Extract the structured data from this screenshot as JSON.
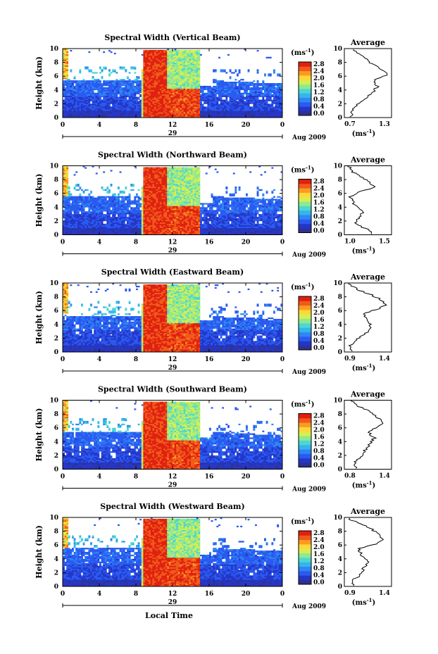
{
  "x_axis": {
    "label": "Local Time",
    "ticks": [
      "0",
      "4",
      "8",
      "12",
      "16",
      "20",
      "0"
    ],
    "day": "29",
    "date_label": "Aug 2009"
  },
  "y_axis": {
    "label": "Height (km)",
    "ticks": [
      "0",
      "2",
      "4",
      "6",
      "8",
      "10"
    ]
  },
  "colorbar": {
    "unit_label": "(ms",
    "unit_exp": "-1",
    "ticks": [
      "0.0",
      "0.4",
      "0.8",
      "1.2",
      "1.6",
      "2.0",
      "2.4",
      "2.8"
    ],
    "colors": [
      "#303090",
      "#2436c8",
      "#2a5af0",
      "#2f86f4",
      "#35b4ee",
      "#4ad8d0",
      "#90e890",
      "#d8ee50",
      "#fcd838",
      "#fc9a22",
      "#f05a1a",
      "#e02010"
    ]
  },
  "average": {
    "title": "Average",
    "xlabel": "(ms",
    "xlabel_exp": "-1"
  },
  "chart_data": [
    {
      "type": "heatmap",
      "title": "Spectral Width (Vertical Beam)",
      "xlabel": "Local Time",
      "ylabel": "Height (km)",
      "xlim": [
        0,
        24
      ],
      "ylim": [
        0,
        10
      ],
      "clim": [
        0,
        2.8
      ],
      "unit": "ms-1",
      "profile": {
        "xlim": [
          0.7,
          1.3
        ],
        "xticks": [
          "0.7",
          "1.3"
        ],
        "height": [
          0.2,
          0.8,
          1.5,
          2.5,
          3.5,
          4.5,
          5.5,
          6.2,
          6.8,
          7.5,
          8.2,
          9.0,
          9.8
        ],
        "values": [
          0.78,
          0.8,
          0.83,
          0.95,
          1.05,
          1.12,
          1.08,
          1.25,
          1.18,
          1.1,
          1.0,
          0.92,
          0.8
        ]
      }
    },
    {
      "type": "heatmap",
      "title": "Spectral Width (Northward Beam)",
      "xlabel": "Local Time",
      "ylabel": "Height (km)",
      "xlim": [
        0,
        24
      ],
      "ylim": [
        0,
        10
      ],
      "clim": [
        0,
        2.8
      ],
      "unit": "ms-1",
      "profile": {
        "xlim": [
          1.0,
          1.5
        ],
        "xticks": [
          "1.0",
          "1.5"
        ],
        "height": [
          0.2,
          0.8,
          1.5,
          2.5,
          3.5,
          4.5,
          5.5,
          6.2,
          6.8,
          7.5,
          8.2,
          9.0,
          9.8
        ],
        "values": [
          1.3,
          1.25,
          1.12,
          1.15,
          1.2,
          1.1,
          1.06,
          1.15,
          1.32,
          1.28,
          1.2,
          1.1,
          1.05
        ]
      }
    },
    {
      "type": "heatmap",
      "title": "Spectral Width (Eastward Beam)",
      "xlabel": "Local Time",
      "ylabel": "Height (km)",
      "xlim": [
        0,
        24
      ],
      "ylim": [
        0,
        10
      ],
      "clim": [
        0,
        2.8
      ],
      "unit": "ms-1",
      "profile": {
        "xlim": [
          0.9,
          1.4
        ],
        "xticks": [
          "0.9",
          "1.4"
        ],
        "height": [
          0.2,
          0.8,
          1.5,
          2.5,
          3.5,
          4.5,
          5.5,
          6.2,
          6.8,
          7.5,
          8.2,
          9.0,
          9.8
        ],
        "values": [
          1.0,
          0.95,
          1.0,
          1.1,
          1.2,
          1.15,
          1.1,
          1.25,
          1.35,
          1.3,
          1.2,
          1.05,
          0.95
        ]
      }
    },
    {
      "type": "heatmap",
      "title": "Spectral Width (Southward Beam)",
      "xlabel": "Local Time",
      "ylabel": "Height (km)",
      "xlim": [
        0,
        24
      ],
      "ylim": [
        0,
        10
      ],
      "clim": [
        0,
        2.8
      ],
      "unit": "ms-1",
      "profile": {
        "xlim": [
          0.8,
          1.4
        ],
        "xticks": [
          "0.8",
          "1.4"
        ],
        "height": [
          0.2,
          0.8,
          1.5,
          2.5,
          3.5,
          4.5,
          5.5,
          6.2,
          6.8,
          7.5,
          8.2,
          9.0,
          9.8
        ],
        "values": [
          0.95,
          0.92,
          0.98,
          1.05,
          1.12,
          1.18,
          1.1,
          1.25,
          1.3,
          1.22,
          1.15,
          1.0,
          0.9
        ]
      }
    },
    {
      "type": "heatmap",
      "title": "Spectral Width (Westward Beam)",
      "xlabel": "Local Time",
      "ylabel": "Height (km)",
      "xlim": [
        0,
        24
      ],
      "ylim": [
        0,
        10
      ],
      "clim": [
        0,
        2.8
      ],
      "unit": "ms-1",
      "profile": {
        "xlim": [
          0.9,
          1.4
        ],
        "xticks": [
          "0.9",
          "1.4"
        ],
        "height": [
          0.2,
          0.8,
          1.5,
          2.5,
          3.5,
          4.5,
          5.5,
          6.2,
          6.8,
          7.5,
          8.2,
          9.0,
          9.8
        ],
        "values": [
          1.0,
          0.98,
          1.05,
          1.1,
          1.15,
          1.08,
          1.05,
          1.25,
          1.3,
          1.28,
          1.2,
          1.1,
          0.95
        ]
      }
    }
  ]
}
